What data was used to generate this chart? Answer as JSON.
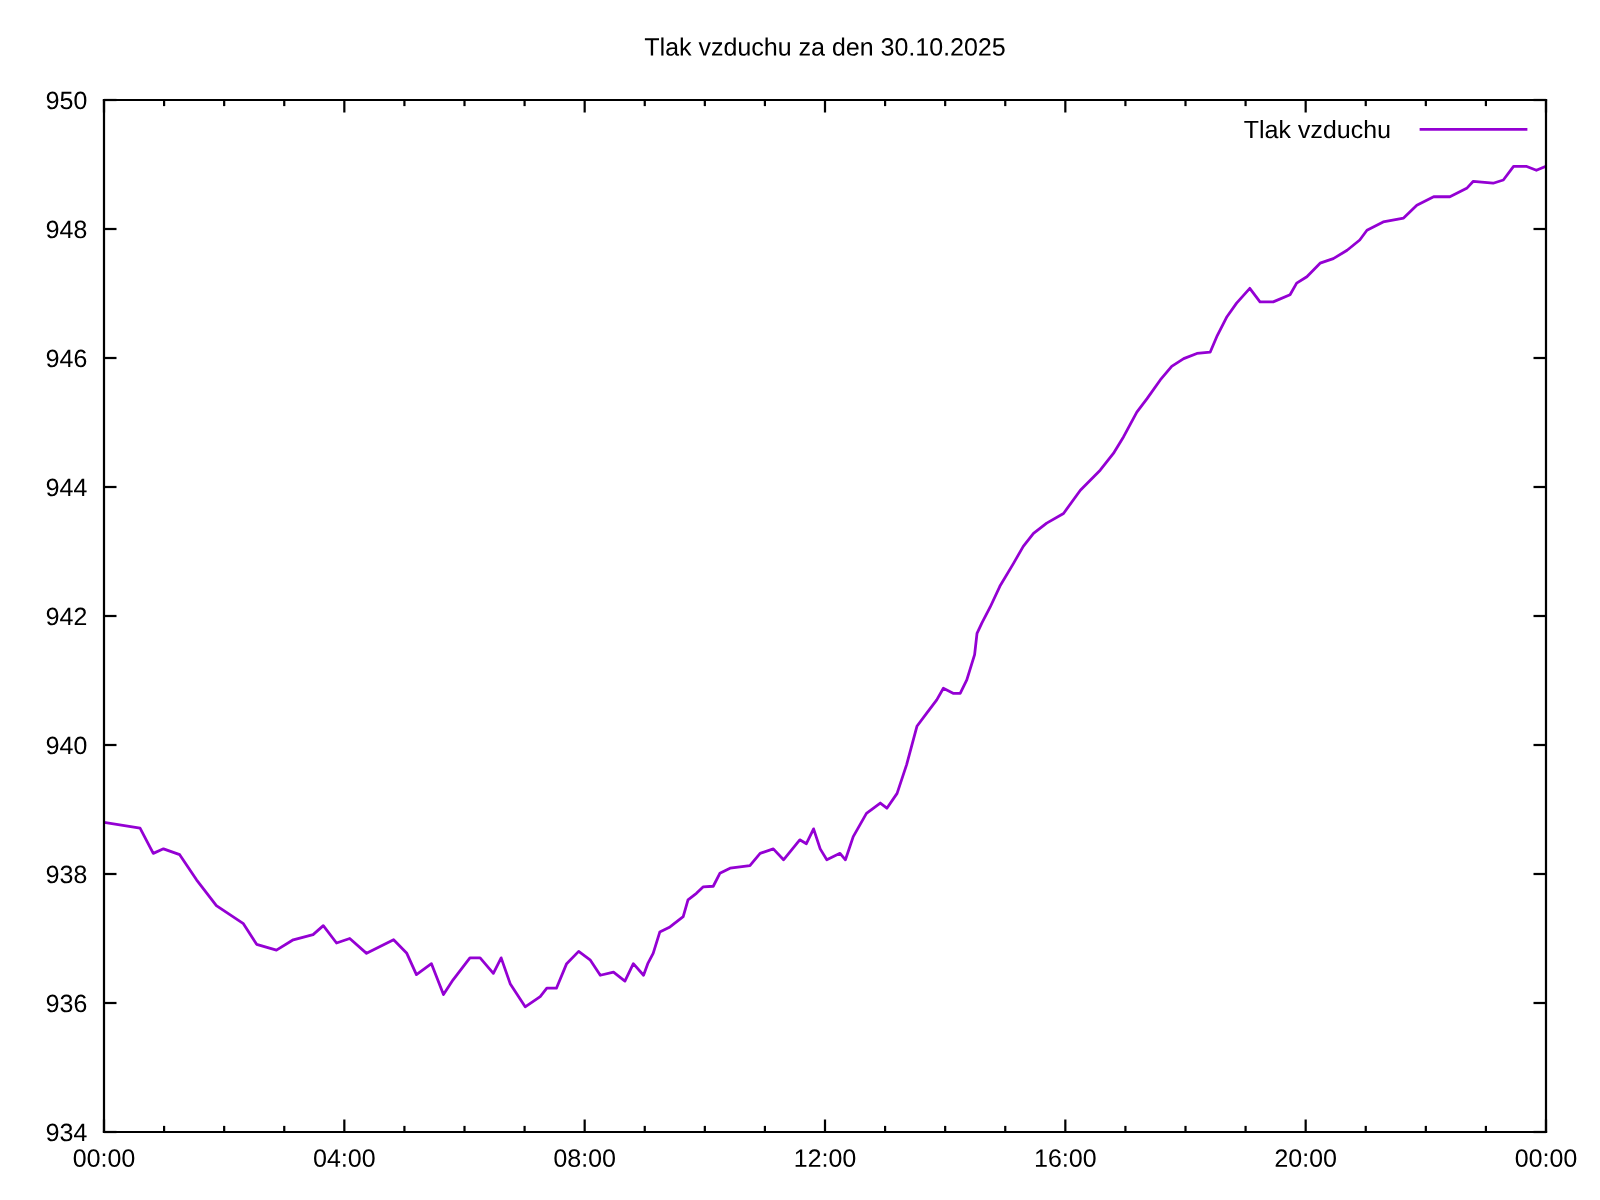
{
  "chart_data": {
    "type": "line",
    "title": "Tlak vzduchu za den 30.10.2025",
    "xlim": [
      0,
      24
    ],
    "xticks": [
      {
        "value": 0,
        "label": "00:00"
      },
      {
        "value": 1,
        "label": null
      },
      {
        "value": 2,
        "label": null
      },
      {
        "value": 3,
        "label": null
      },
      {
        "value": 4,
        "label": "04:00"
      },
      {
        "value": 5,
        "label": null
      },
      {
        "value": 6,
        "label": null
      },
      {
        "value": 7,
        "label": null
      },
      {
        "value": 8,
        "label": "08:00"
      },
      {
        "value": 9,
        "label": null
      },
      {
        "value": 10,
        "label": null
      },
      {
        "value": 11,
        "label": null
      },
      {
        "value": 12,
        "label": "12:00"
      },
      {
        "value": 13,
        "label": null
      },
      {
        "value": 14,
        "label": null
      },
      {
        "value": 15,
        "label": null
      },
      {
        "value": 16,
        "label": "16:00"
      },
      {
        "value": 17,
        "label": null
      },
      {
        "value": 18,
        "label": null
      },
      {
        "value": 19,
        "label": null
      },
      {
        "value": 20,
        "label": "20:00"
      },
      {
        "value": 21,
        "label": null
      },
      {
        "value": 22,
        "label": null
      },
      {
        "value": 23,
        "label": null
      },
      {
        "value": 24,
        "label": "00:00"
      }
    ],
    "ylim": [
      934,
      950
    ],
    "yticks": [
      934,
      936,
      938,
      940,
      942,
      944,
      946,
      948,
      950
    ],
    "grid": false,
    "legend": "top right",
    "marker": "none",
    "line_style": "solid",
    "series": [
      {
        "name": "Tlak vzduchu",
        "color": "#9400d3",
        "x": [
          0,
          0.6,
          0.82,
          0.99,
          1.26,
          1.54,
          1.87,
          2.32,
          2.54,
          2.87,
          3.15,
          3.48,
          3.65,
          3.87,
          4.09,
          4.37,
          4.82,
          5.04,
          5.2,
          5.45,
          5.65,
          5.81,
          6.09,
          6.26,
          6.48,
          6.61,
          6.76,
          7.01,
          7.26,
          7.37,
          7.53,
          7.7,
          7.9,
          8.09,
          8.26,
          8.48,
          8.67,
          8.81,
          8.98,
          9.05,
          9.14,
          9.25,
          9.42,
          9.64,
          9.72,
          9.86,
          9.97,
          10.14,
          10.25,
          10.42,
          10.75,
          10.92,
          11.14,
          11.31,
          11.58,
          11.69,
          11.81,
          11.92,
          12.03,
          12.25,
          12.34,
          12.47,
          12.69,
          12.92,
          13.03,
          13.2,
          13.36,
          13.53,
          13.69,
          13.86,
          13.97,
          14.14,
          14.25,
          14.36,
          14.49,
          14.53,
          14.61,
          14.75,
          14.91,
          15.14,
          15.3,
          15.47,
          15.69,
          15.97,
          16.25,
          16.58,
          16.8,
          16.97,
          17.19,
          17.36,
          17.58,
          17.77,
          17.97,
          18.19,
          18.41,
          18.52,
          18.69,
          18.85,
          19.07,
          19.24,
          19.46,
          19.74,
          19.85,
          20.02,
          20.24,
          20.46,
          20.69,
          20.9,
          21.02,
          21.29,
          21.63,
          21.85,
          22.13,
          22.4,
          22.68,
          22.79,
          23.12,
          23.29,
          23.46,
          23.68,
          23.84,
          23.99
        ],
        "values": [
          938.8,
          938.71,
          938.32,
          938.39,
          938.3,
          937.91,
          937.51,
          937.23,
          936.91,
          936.82,
          936.98,
          937.06,
          937.2,
          936.93,
          937.0,
          936.77,
          936.98,
          936.77,
          936.44,
          936.61,
          936.13,
          936.36,
          936.7,
          936.7,
          936.46,
          936.7,
          936.3,
          935.94,
          936.1,
          936.23,
          936.23,
          936.61,
          936.8,
          936.67,
          936.43,
          936.48,
          936.34,
          936.61,
          936.43,
          936.61,
          936.77,
          937.1,
          937.18,
          937.34,
          937.6,
          937.7,
          937.8,
          937.81,
          938.01,
          938.09,
          938.13,
          938.32,
          938.39,
          938.22,
          938.53,
          938.47,
          938.7,
          938.39,
          938.22,
          938.32,
          938.22,
          938.58,
          938.94,
          939.1,
          939.02,
          939.25,
          939.7,
          940.29,
          940.49,
          940.7,
          940.88,
          940.8,
          940.8,
          941.01,
          941.4,
          941.73,
          941.89,
          942.14,
          942.46,
          942.82,
          943.08,
          943.28,
          943.44,
          943.59,
          943.95,
          944.26,
          944.52,
          944.78,
          945.16,
          945.37,
          945.66,
          945.87,
          945.99,
          946.07,
          946.09,
          946.33,
          946.64,
          946.85,
          947.08,
          946.87,
          946.87,
          946.98,
          947.16,
          947.26,
          947.47,
          947.54,
          947.67,
          947.83,
          947.98,
          948.11,
          948.17,
          948.37,
          948.5,
          948.5,
          948.63,
          948.74,
          948.71,
          948.76,
          948.97,
          948.97,
          948.91,
          948.97
        ]
      }
    ]
  }
}
